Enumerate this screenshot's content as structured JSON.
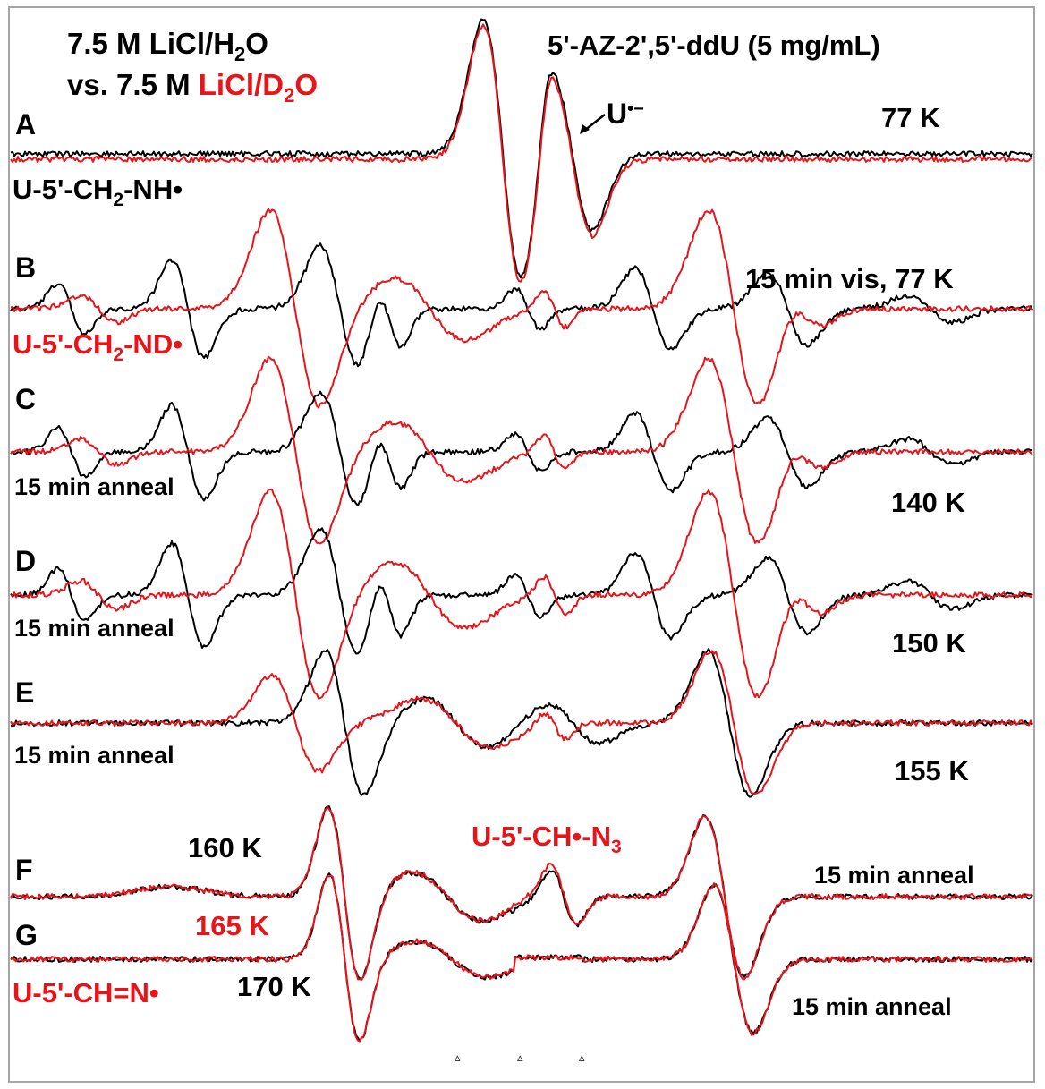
{
  "chart_data": {
    "type": "line",
    "title": "5'-AZ-2',5'-ddU (5 mg/mL)",
    "legend": {
      "line1": "7.5 M LiCl/H",
      "line1_sub": "2",
      "line1_end": "O",
      "line2_prefix": "vs. 7.5 M ",
      "line2_red": "LiCl/D",
      "line2_sub": "2",
      "line2_end": "O"
    },
    "colors": {
      "h2o": "#000000",
      "d2o": "#e8141a",
      "frame": "#a6a6a6"
    },
    "series": [
      {
        "name": "7.5 M LiCl/H2O",
        "color": "#000000"
      },
      {
        "name": "7.5 M LiCl/D2O",
        "color": "#e8141a"
      }
    ],
    "panels": [
      {
        "id": "A",
        "condition": "77 K",
        "shape": "single-anion",
        "annotations": [
          {
            "text": "U",
            "super": "•−",
            "color": "#000000",
            "role": "peak-label"
          },
          {
            "text": "U-5'-CH",
            "sub": "2",
            "tail": "-NH",
            "dot": "•",
            "color": "#000000",
            "role": "species"
          }
        ]
      },
      {
        "id": "B",
        "condition": "15 min vis, 77 K",
        "shape": "aminyl",
        "annotations": [
          {
            "text": "U-5'-CH",
            "sub": "2",
            "tail": "-ND",
            "dot": "•",
            "color": "#e8141a",
            "role": "species"
          }
        ]
      },
      {
        "id": "C",
        "condition": "140 K",
        "note": "15 min anneal",
        "shape": "aminyl"
      },
      {
        "id": "D",
        "condition": "150 K",
        "note": "15 min anneal",
        "shape": "aminyl"
      },
      {
        "id": "E",
        "condition": "155 K",
        "note": "15 min anneal",
        "shape": "transition"
      },
      {
        "id": "F",
        "condition": "160 K",
        "note": "15 min anneal",
        "shape": "iminyl-wide",
        "annotations": [
          {
            "text": "U-5'-CH",
            "dot": "•",
            "tail": "-N",
            "sub": "3",
            "color": "#e8141a",
            "role": "species"
          }
        ]
      },
      {
        "id": "G",
        "condition_h2o": "170 K",
        "condition_d2o": "165 K",
        "note": "15 min anneal",
        "shape": "iminyl",
        "annotations": [
          {
            "text": "U-5'-CH=N",
            "dot": "•",
            "color": "#e8141a",
            "role": "species"
          }
        ]
      }
    ],
    "markers": [
      "▵",
      "▵",
      "▵"
    ],
    "grid": false
  }
}
